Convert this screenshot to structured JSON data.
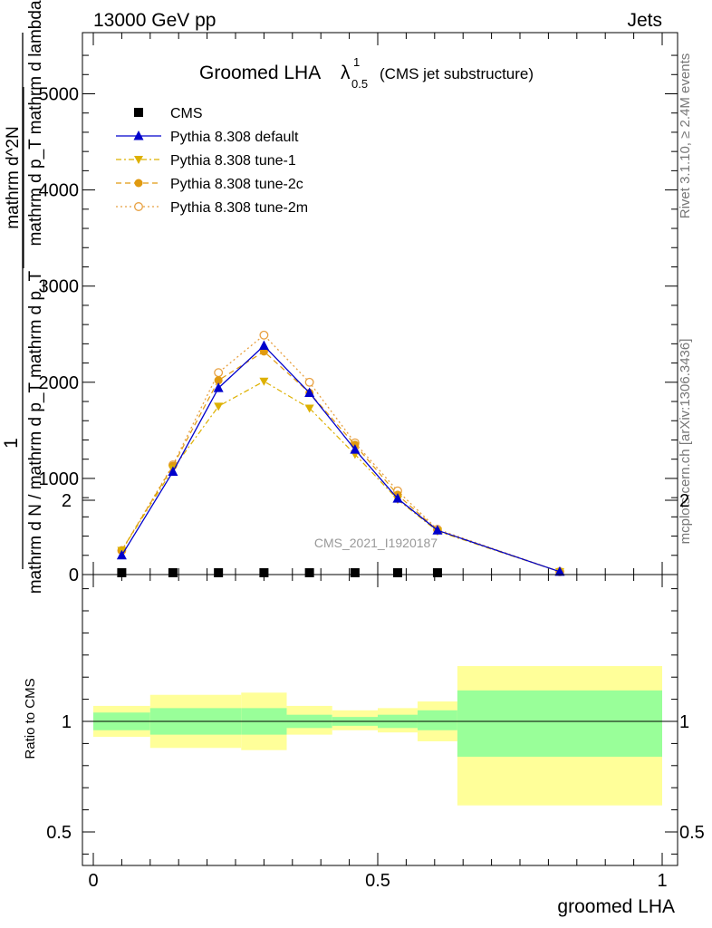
{
  "header": {
    "energy": "13000 GeV pp",
    "process": "Jets",
    "rivet": "Rivet 3.1.10, ≥ 2.4M events",
    "mcplots": "mcplots.cern.ch [arXiv:1306.3436]",
    "analysis": "CMS_2021_I1920187"
  },
  "title": {
    "main": "Groomed LHA",
    "lambda": "λ",
    "sub": "0.5",
    "sup": "1",
    "suffix": "(CMS jet substructure)"
  },
  "ylabel_parts": {
    "one": "1",
    "denominator": "mathrm d N / mathrm d p_T mathrm d p_T",
    "numerator": "mathrm d^2N",
    "numerator_rest": "mathrm d p_T mathrm d lambda"
  },
  "colors": {
    "cms": "#000000",
    "default": "#0000cc",
    "tune1": "#ddb000",
    "tune2c": "#e09a10",
    "tune2m": "#e8a040",
    "band_inner": "#99ff99",
    "band_outer": "#ffff99"
  },
  "chart_data": [
    {
      "type": "line",
      "xlabel": "",
      "ylabel": "",
      "xlim": [
        0,
        1
      ],
      "ylim": [
        0,
        5600
      ],
      "yticks": [
        {
          "value": 0,
          "label": "0"
        },
        {
          "value": 1000,
          "label": "1000"
        },
        {
          "value": 2000,
          "label": "2000"
        },
        {
          "value": 3000,
          "label": "3000"
        },
        {
          "value": 4000,
          "label": "4000"
        },
        {
          "value": 5000,
          "label": "5000"
        }
      ],
      "legend_position": "top-left",
      "series": [
        {
          "name": "CMS",
          "style": "data",
          "x": [
            0.05,
            0.14,
            0.22,
            0.3,
            0.38,
            0.46,
            0.535,
            0.605
          ],
          "values": [
            10,
            10,
            10,
            10,
            10,
            10,
            10,
            10
          ]
        },
        {
          "name": "Pythia 8.308 default",
          "style": "default",
          "x": [
            0.05,
            0.14,
            0.22,
            0.3,
            0.38,
            0.46,
            0.535,
            0.605,
            0.82
          ],
          "values": [
            200,
            1070,
            1940,
            2380,
            1890,
            1300,
            790,
            460,
            30
          ]
        },
        {
          "name": "Pythia 8.308 tune-1",
          "style": "tune1",
          "x": [
            0.05,
            0.14,
            0.22,
            0.3,
            0.38,
            0.46,
            0.535,
            0.605,
            0.82
          ],
          "values": [
            250,
            1100,
            1750,
            2010,
            1730,
            1250,
            780,
            450,
            30
          ]
        },
        {
          "name": "Pythia 8.308 tune-2c",
          "style": "tune2c",
          "x": [
            0.05,
            0.14,
            0.22,
            0.3,
            0.38,
            0.46,
            0.535,
            0.605,
            0.82
          ],
          "values": [
            250,
            1130,
            2020,
            2320,
            1890,
            1350,
            830,
            460,
            30
          ]
        },
        {
          "name": "Pythia 8.308 tune-2m",
          "style": "tune2m",
          "x": [
            0.05,
            0.14,
            0.22,
            0.3,
            0.38,
            0.46,
            0.535,
            0.605,
            0.82
          ],
          "values": [
            250,
            1140,
            2100,
            2490,
            2000,
            1370,
            870,
            470,
            30
          ]
        }
      ]
    },
    {
      "type": "area",
      "xlabel": "groomed LHA",
      "ylabel": "Ratio to CMS",
      "xlim": [
        0,
        1
      ],
      "ylim": [
        0.35,
        2.25
      ],
      "yticks": [
        {
          "value": 0.5,
          "label": "0.5"
        },
        {
          "value": 1,
          "label": "1"
        },
        {
          "value": 2,
          "label": "2"
        }
      ],
      "xticks": [
        {
          "value": 0,
          "label": "0"
        },
        {
          "value": 0.5,
          "label": "0.5"
        },
        {
          "value": 1,
          "label": "1"
        }
      ],
      "bins": [
        {
          "x0": 0.0,
          "x1": 0.1,
          "inner": [
            0.96,
            1.04
          ],
          "outer": [
            0.93,
            1.07
          ]
        },
        {
          "x0": 0.1,
          "x1": 0.26,
          "inner": [
            0.94,
            1.06
          ],
          "outer": [
            0.88,
            1.12
          ]
        },
        {
          "x0": 0.26,
          "x1": 0.34,
          "inner": [
            0.94,
            1.06
          ],
          "outer": [
            0.87,
            1.13
          ]
        },
        {
          "x0": 0.34,
          "x1": 0.42,
          "inner": [
            0.97,
            1.03
          ],
          "outer": [
            0.94,
            1.07
          ]
        },
        {
          "x0": 0.42,
          "x1": 0.5,
          "inner": [
            0.98,
            1.02
          ],
          "outer": [
            0.96,
            1.05
          ]
        },
        {
          "x0": 0.5,
          "x1": 0.57,
          "inner": [
            0.97,
            1.03
          ],
          "outer": [
            0.95,
            1.06
          ]
        },
        {
          "x0": 0.57,
          "x1": 0.64,
          "inner": [
            0.96,
            1.05
          ],
          "outer": [
            0.91,
            1.09
          ]
        },
        {
          "x0": 0.64,
          "x1": 1.0,
          "inner": [
            0.84,
            1.14
          ],
          "outer": [
            0.62,
            1.25
          ]
        }
      ]
    }
  ]
}
